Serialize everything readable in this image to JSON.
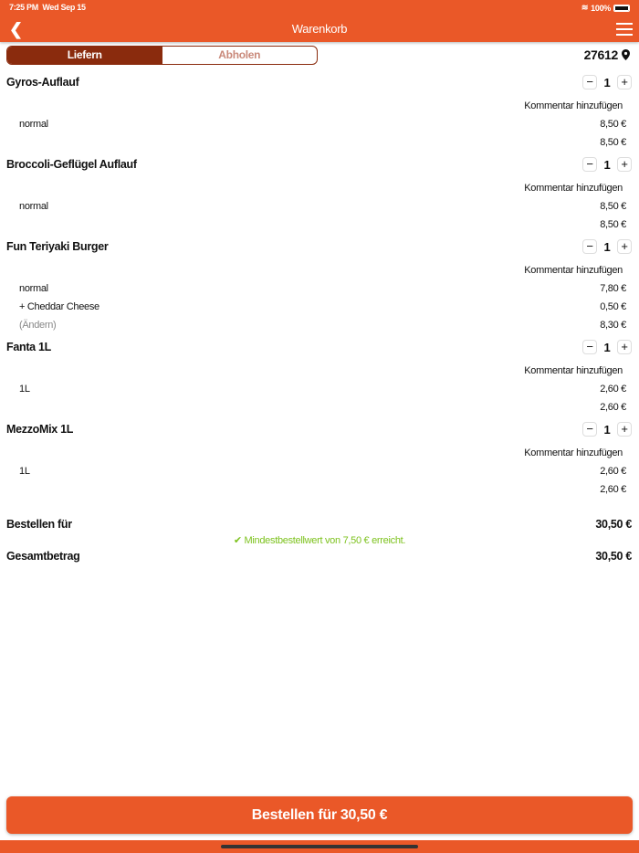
{
  "status": {
    "time": "7:25 PM",
    "date": "Wed Sep 15",
    "battery": "100%"
  },
  "header": {
    "title": "Warenkorb"
  },
  "segment": {
    "deliver": "Liefern",
    "pickup": "Abholen",
    "selected": "Liefern"
  },
  "postcode": "27612",
  "comment_label": "Kommentar hinzufügen",
  "items": [
    {
      "name": "Gyros-Auflauf",
      "qty": "1",
      "lines": [
        {
          "label": "normal",
          "price": "8,50 €"
        },
        {
          "label": "",
          "price": "8,50 €"
        }
      ]
    },
    {
      "name": "Broccoli-Geflügel Auflauf",
      "qty": "1",
      "lines": [
        {
          "label": "normal",
          "price": "8,50 €"
        },
        {
          "label": "",
          "price": "8,50 €"
        }
      ]
    },
    {
      "name": "Fun Teriyaki Burger",
      "qty": "1",
      "lines": [
        {
          "label": "normal",
          "price": "7,80 €"
        },
        {
          "label": "+ Cheddar Cheese",
          "price": "0,50 €"
        },
        {
          "label": "(Ändern)",
          "price": "8,30 €",
          "link": true
        }
      ]
    },
    {
      "name": "Fanta 1L",
      "qty": "1",
      "lines": [
        {
          "label": "1L",
          "price": "2,60 €"
        },
        {
          "label": "",
          "price": "2,60 €"
        }
      ]
    },
    {
      "name": "MezzoMix 1L",
      "qty": "1",
      "lines": [
        {
          "label": "1L",
          "price": "2,60 €"
        },
        {
          "label": "",
          "price": "2,60 €"
        }
      ]
    }
  ],
  "summary": {
    "order_for_label": "Bestellen für",
    "order_for_value": "30,50 €",
    "min_notice": "Mindestbestellwert von 7,50 € erreicht.",
    "total_label": "Gesamtbetrag",
    "total_value": "30,50 €"
  },
  "order_button": "Bestellen für 30,50 €",
  "colors": {
    "brand": "#ea5828",
    "segment": "#8a2b0d",
    "success": "#7dc21e"
  }
}
